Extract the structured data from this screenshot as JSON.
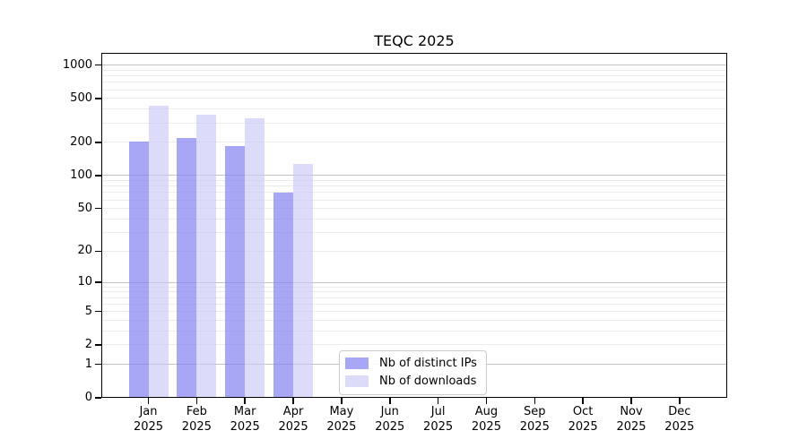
{
  "title": "TEQC 2025",
  "chart_data": {
    "type": "bar",
    "title": "TEQC 2025",
    "xlabel": "",
    "ylabel": "",
    "y_scale": "symlog(log1p)",
    "y_ticks": [
      0,
      1,
      2,
      5,
      10,
      20,
      50,
      100,
      200,
      500,
      1000
    ],
    "ylim": [
      0,
      1290
    ],
    "grid": "on",
    "legend_position": "inside-bottom-center",
    "categories": [
      "Jan",
      "Feb",
      "Mar",
      "Apr",
      "May",
      "Jun",
      "Jul",
      "Aug",
      "Sep",
      "Oct",
      "Nov",
      "Dec"
    ],
    "year_label": "2025",
    "series": [
      {
        "name": "Nb of distinct IPs",
        "color": "#8585f2",
        "fill_opacity": 0.72,
        "values": [
          203,
          218,
          186,
          70,
          0,
          0,
          0,
          0,
          0,
          0,
          0,
          0
        ]
      },
      {
        "name": "Nb of downloads",
        "color": "#c9c9f7",
        "fill_opacity": 0.65,
        "values": [
          428,
          357,
          332,
          127,
          0,
          0,
          0,
          0,
          0,
          0,
          0,
          0
        ]
      }
    ]
  },
  "colors": {
    "grid_major": "#c2c2c2",
    "grid_minor": "#ebebeb",
    "axis": "#000000",
    "legend_border": "#cccccc",
    "background": "#ffffff"
  }
}
